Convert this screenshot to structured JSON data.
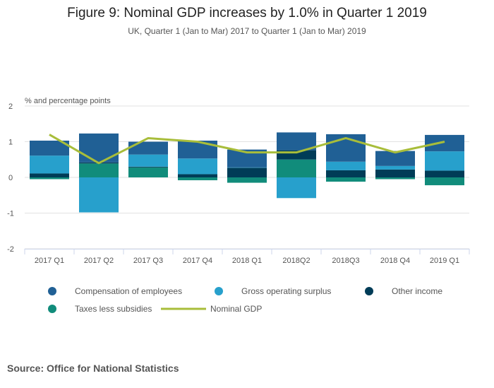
{
  "chart_data": {
    "type": "bar",
    "stacked": true,
    "title": "Figure 9: Nominal GDP increases by 1.0% in Quarter 1 2019",
    "subtitle": "UK, Quarter 1 (Jan to Mar) 2017 to Quarter 1 (Jan to Mar) 2019",
    "ylabel": "% and percentage points",
    "ylim": [
      -2,
      2
    ],
    "yticks": [
      "2",
      "1",
      "0",
      "-1",
      "-2"
    ],
    "grid": true,
    "legend_position": "bottom",
    "categories": [
      "2017 Q1",
      "2017 Q2",
      "2017 Q3",
      "2017 Q4",
      "2018 Q1",
      "2018Q2",
      "2018Q3",
      "2018 Q4",
      "2019 Q1"
    ],
    "series": [
      {
        "name": "Compensation of employees",
        "type": "bar",
        "color": "#206095",
        "values": [
          0.42,
          0.81,
          0.36,
          0.5,
          0.5,
          0.5,
          0.77,
          0.42,
          0.46
        ]
      },
      {
        "name": "Gross operating surplus",
        "type": "bar",
        "color": "#27a0cc",
        "values": [
          0.5,
          -0.98,
          0.34,
          0.44,
          0.01,
          -0.58,
          0.24,
          0.1,
          0.54
        ]
      },
      {
        "name": "Other income",
        "type": "bar",
        "color": "#003c57",
        "values": [
          0.11,
          0.03,
          0.02,
          0.09,
          0.27,
          0.26,
          0.2,
          0.22,
          0.19
        ]
      },
      {
        "name": "Taxes less subsidies",
        "type": "bar",
        "color": "#118c7b",
        "values": [
          -0.05,
          0.39,
          0.28,
          -0.08,
          -0.15,
          0.5,
          -0.12,
          -0.05,
          -0.22
        ]
      },
      {
        "name": "Nominal GDP",
        "type": "line",
        "color": "#a8bd3a",
        "values": [
          1.2,
          0.4,
          1.1,
          1.0,
          0.7,
          0.7,
          1.1,
          0.7,
          1.0
        ]
      }
    ]
  },
  "source": "Source: Office for National Statistics"
}
